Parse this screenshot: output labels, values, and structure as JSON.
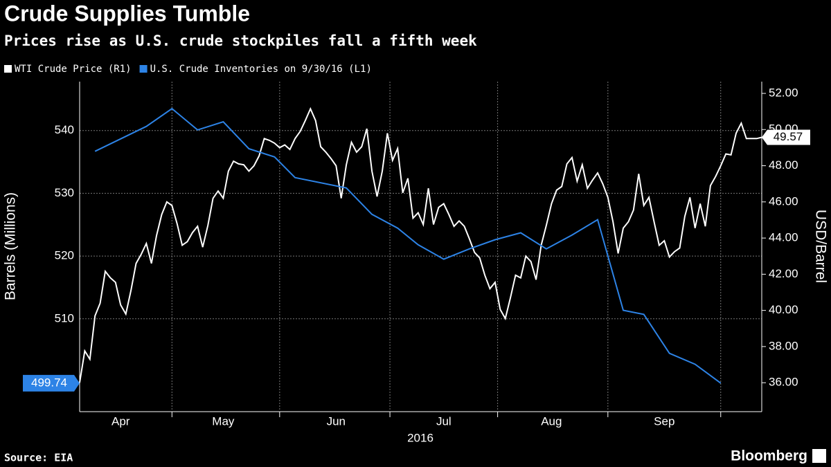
{
  "chart_data": {
    "type": "line",
    "title": "Crude Supplies Tumble",
    "subtitle": "Prices rise as U.S. crude stockpiles fall a fifth week",
    "xlabel": "2016",
    "ylabel": "Barrels (Millions)",
    "y2label": "USD/Barrel",
    "source": "Source: EIA",
    "brand": "Bloomberg",
    "legend": "top-left",
    "grid": true,
    "categories": [
      null,
      null,
      null,
      null,
      null,
      null,
      null,
      null,
      "Apr",
      null,
      null,
      null,
      null,
      null,
      null,
      null,
      null,
      null,
      null,
      null,
      null,
      null,
      null,
      null,
      null,
      null,
      null,
      null,
      "May",
      null,
      null,
      null,
      null,
      null,
      null,
      null,
      null,
      null,
      null,
      null,
      null,
      null,
      null,
      null,
      null,
      null,
      null,
      null,
      null,
      null,
      "Jun",
      null,
      null,
      null,
      null,
      null,
      null,
      null,
      null,
      null,
      null,
      null,
      null,
      null,
      null,
      null,
      null,
      null,
      null,
      null,
      null,
      "Jul",
      null,
      null,
      null,
      null,
      null,
      null,
      null,
      null,
      null,
      null,
      null,
      null,
      null,
      null,
      null,
      null,
      null,
      null,
      null,
      null,
      "Aug",
      null,
      null,
      null,
      null,
      null,
      null,
      null,
      null,
      null,
      null,
      null,
      null,
      null,
      null,
      null,
      null,
      null,
      null,
      null,
      null,
      null,
      "Sep",
      null,
      null,
      null,
      null,
      null,
      null,
      null,
      null,
      null,
      null,
      null,
      null,
      null,
      null,
      null,
      null,
      null,
      null,
      null
    ],
    "ylim": [
      495.2,
      547.8
    ],
    "yticks": [
      510,
      520,
      530,
      540
    ],
    "y2lim": [
      34.4,
      52.65
    ],
    "y2ticks": [
      {
        "value": 36,
        "label": "36.00"
      },
      {
        "value": 38,
        "label": "38.00"
      },
      {
        "value": 40,
        "label": "40.00"
      },
      {
        "value": 42,
        "label": "42.00"
      },
      {
        "value": 44,
        "label": "44.00"
      },
      {
        "value": 46,
        "label": "46.00"
      },
      {
        "value": 48,
        "label": "48.00"
      },
      {
        "value": 50,
        "label": "50.00"
      },
      {
        "value": 52,
        "label": "52.00"
      }
    ],
    "series": [
      {
        "name": "WTI Crude Price (R1)",
        "color": "#ffffff",
        "axis": "y2",
        "values": [
          36.0,
          37.76,
          37.3,
          39.7,
          40.4,
          42.16,
          41.8,
          41.55,
          40.3,
          39.8,
          41.1,
          42.6,
          43.1,
          43.7,
          42.6,
          44.15,
          45.3,
          46.0,
          45.8,
          44.8,
          43.6,
          43.8,
          44.3,
          44.65,
          43.5,
          44.7,
          46.2,
          46.6,
          46.2,
          47.7,
          48.25,
          48.1,
          48.05,
          47.7,
          48.0,
          48.55,
          49.5,
          49.4,
          49.25,
          49.0,
          49.15,
          48.9,
          49.5,
          49.9,
          50.5,
          51.15,
          50.5,
          49.05,
          48.75,
          48.4,
          48.0,
          46.2,
          48.05,
          49.3,
          48.75,
          49.05,
          50.05,
          47.7,
          46.3,
          47.7,
          49.8,
          48.3,
          48.95,
          46.5,
          47.3,
          45.1,
          45.4,
          44.75,
          46.75,
          44.75,
          45.7,
          45.9,
          45.3,
          44.65,
          44.95,
          44.65,
          43.95,
          43.2,
          42.9,
          41.95,
          41.2,
          41.55,
          40.05,
          39.55,
          40.7,
          41.95,
          41.8,
          43.0,
          42.7,
          41.7,
          43.6,
          44.7,
          45.9,
          46.65,
          46.85,
          48.1,
          48.45,
          47.15,
          48.05,
          46.75,
          47.2,
          47.6,
          47.0,
          46.25,
          44.9,
          43.15,
          44.55,
          44.9,
          45.55,
          47.55,
          45.8,
          46.25,
          44.9,
          43.6,
          43.85,
          42.95,
          43.25,
          43.45,
          45.2,
          46.25,
          44.55,
          45.9,
          44.65,
          46.9,
          47.4,
          48.0,
          48.65,
          48.6,
          49.8,
          50.35,
          49.5,
          49.5,
          49.5,
          49.57
        ]
      },
      {
        "name": "U.S. Crude Inventories on 9/30/16 (L1)",
        "color": "#2d83e6",
        "connect_nulls": true,
        "values": [
          null,
          null,
          null,
          536.7,
          null,
          null,
          null,
          null,
          null,
          null,
          null,
          null,
          null,
          540.66,
          null,
          null,
          null,
          null,
          543.5,
          null,
          null,
          null,
          null,
          540.1,
          null,
          null,
          null,
          null,
          541.4,
          null,
          null,
          null,
          null,
          537.1,
          null,
          null,
          null,
          null,
          535.8,
          null,
          null,
          null,
          532.5,
          null,
          null,
          null,
          null,
          null,
          null,
          null,
          null,
          null,
          530.85,
          null,
          null,
          null,
          null,
          526.65,
          null,
          null,
          null,
          null,
          524.45,
          null,
          null,
          null,
          521.8,
          null,
          null,
          null,
          null,
          519.5,
          null,
          null,
          null,
          null,
          521.15,
          null,
          null,
          null,
          null,
          522.6,
          null,
          null,
          null,
          null,
          523.7,
          null,
          null,
          null,
          null,
          521.15,
          null,
          null,
          null,
          null,
          523.35,
          null,
          null,
          null,
          null,
          525.8,
          null,
          null,
          null,
          null,
          511.35,
          null,
          null,
          null,
          510.7,
          null,
          null,
          null,
          null,
          504.5,
          null,
          null,
          null,
          null,
          502.75,
          null,
          null,
          null,
          null,
          499.74,
          null,
          null,
          null,
          null,
          null,
          null,
          null,
          null
        ]
      }
    ]
  }
}
